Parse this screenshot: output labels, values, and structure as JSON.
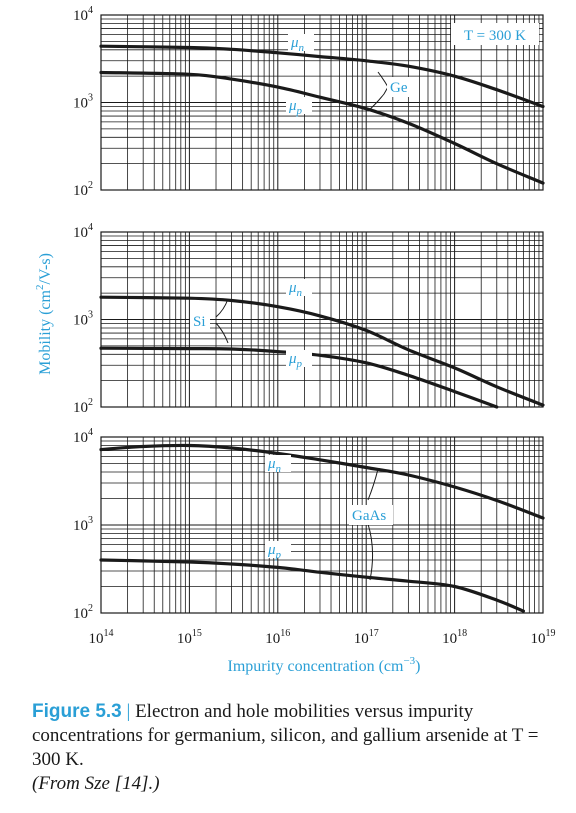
{
  "chart_data": [
    {
      "type": "line",
      "material": "Ge",
      "annotation": "T = 300 K",
      "xscale": "log",
      "yscale": "log",
      "xlim": [
        100000000000000.0,
        1e+19
      ],
      "ylim": [
        100,
        10000
      ],
      "series": [
        {
          "name": "μn",
          "x": [
            100000000000000.0,
            1000000000000000.0,
            3000000000000000.0,
            1e+16,
            3e+16,
            1e+17,
            3e+17,
            1e+18,
            3e+18,
            1e+19
          ],
          "y": [
            4400,
            4250,
            4050,
            3700,
            3350,
            3000,
            2600,
            2000,
            1400,
            900
          ]
        },
        {
          "name": "μp",
          "x": [
            100000000000000.0,
            1000000000000000.0,
            3000000000000000.0,
            1e+16,
            3e+16,
            1e+17,
            3e+17,
            1e+18,
            3e+18,
            1e+19
          ],
          "y": [
            2200,
            2100,
            1850,
            1500,
            1150,
            850,
            580,
            340,
            200,
            120
          ]
        }
      ]
    },
    {
      "type": "line",
      "material": "Si",
      "xscale": "log",
      "yscale": "log",
      "xlim": [
        100000000000000.0,
        1e+19
      ],
      "ylim": [
        100,
        10000
      ],
      "series": [
        {
          "name": "μn",
          "x": [
            100000000000000.0,
            1000000000000000.0,
            3000000000000000.0,
            1e+16,
            3e+16,
            1e+17,
            3e+17,
            1e+18,
            3e+18,
            1e+19
          ],
          "y": [
            1800,
            1750,
            1650,
            1400,
            1100,
            750,
            450,
            280,
            170,
            105
          ]
        },
        {
          "name": "μp",
          "x": [
            100000000000000.0,
            1000000000000000.0,
            3000000000000000.0,
            1e+16,
            3e+16,
            1e+17,
            3e+17,
            1e+18,
            3e+18
          ],
          "y": [
            470,
            465,
            460,
            430,
            390,
            320,
            230,
            150,
            100
          ]
        }
      ]
    },
    {
      "type": "line",
      "material": "GaAs",
      "xscale": "log",
      "yscale": "log",
      "xlim": [
        100000000000000.0,
        1e+19
      ],
      "ylim": [
        100,
        10000
      ],
      "series": [
        {
          "name": "μn",
          "x": [
            100000000000000.0,
            300000000000000.0,
            1000000000000000.0,
            3000000000000000.0,
            1e+16,
            3e+16,
            1e+17,
            3e+17,
            1e+18,
            3e+18,
            1e+19
          ],
          "y": [
            7200,
            7800,
            8000,
            7500,
            6500,
            5500,
            4500,
            3700,
            2700,
            1900,
            1200
          ]
        },
        {
          "name": "μp",
          "x": [
            100000000000000.0,
            1000000000000000.0,
            3000000000000000.0,
            1e+16,
            3e+16,
            1e+17,
            3e+17,
            1e+18,
            3e+18,
            6e+18
          ],
          "y": [
            400,
            380,
            360,
            330,
            290,
            255,
            230,
            200,
            140,
            105
          ]
        }
      ]
    }
  ],
  "axes": {
    "ylabel_text": "Mobility (cm",
    "ylabel_sup": "2",
    "ylabel_tail": "/V-s)",
    "xlabel_text": "Impurity concentration (cm",
    "xlabel_sup": "−3",
    "xlabel_tail": ")",
    "x_ticks": [
      {
        "base": "10",
        "exp": "14"
      },
      {
        "base": "10",
        "exp": "15"
      },
      {
        "base": "10",
        "exp": "16"
      },
      {
        "base": "10",
        "exp": "17"
      },
      {
        "base": "10",
        "exp": "18"
      },
      {
        "base": "10",
        "exp": "19"
      }
    ],
    "y_ticks": [
      {
        "base": "10",
        "exp": "2"
      },
      {
        "base": "10",
        "exp": "3"
      },
      {
        "base": "10",
        "exp": "4"
      }
    ]
  },
  "labels": {
    "mu_symbol": "μ",
    "n_sub": "n",
    "p_sub": "p"
  },
  "caption": {
    "figure_number": "Figure 5.3",
    "separator": "|",
    "text": "Electron and hole mobilities versus impurity concentrations for germanium, silicon, and gallium arsenide at T = 300 K.",
    "source": "(From Sze [14].)"
  },
  "colors": {
    "accent": "#2a9fd6",
    "curve": "#1a1a1a",
    "grid": "#1a1a1a"
  }
}
